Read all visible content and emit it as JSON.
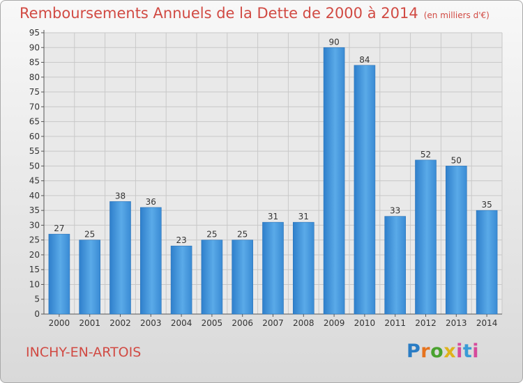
{
  "chart_data": {
    "type": "bar",
    "title": "Remboursements Annuels de la Dette de 2000 à 2014",
    "subtitle": "(en milliers d'€)",
    "categories": [
      "2000",
      "2001",
      "2002",
      "2003",
      "2004",
      "2005",
      "2006",
      "2007",
      "2008",
      "2009",
      "2010",
      "2011",
      "2012",
      "2013",
      "2014"
    ],
    "values": [
      27,
      25,
      38,
      36,
      23,
      25,
      25,
      31,
      31,
      90,
      84,
      33,
      52,
      50,
      35
    ],
    "ylim": [
      0,
      95
    ],
    "ytick_step": 5,
    "grid": true,
    "xlabel": "",
    "ylabel": "",
    "colors": {
      "bar": "#3d8fd6",
      "bar_light": "#6fb5ec",
      "title": "#d14a43",
      "grid": "#c8c8c8"
    }
  },
  "footer": {
    "commune": "INCHY-EN-ARTOIS",
    "logo": "Proxiti"
  }
}
